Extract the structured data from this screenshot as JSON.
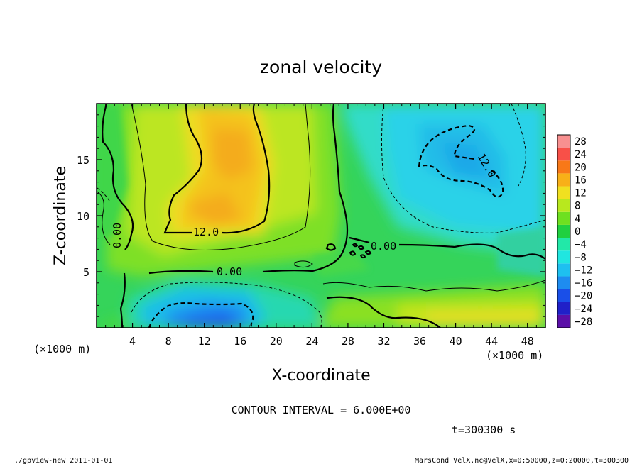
{
  "chart_data": {
    "type": "heatmap",
    "title": "zonal velocity",
    "xlabel": "X-coordinate",
    "ylabel": "Z-coordinate",
    "x_unit": "(×1000 m)",
    "y_unit": "(×1000 m)",
    "xlim": [
      0,
      50
    ],
    "ylim": [
      0,
      20
    ],
    "x_ticks": [
      4,
      8,
      12,
      16,
      20,
      24,
      28,
      32,
      36,
      40,
      44,
      48
    ],
    "y_ticks": [
      5,
      10,
      15
    ],
    "colorbar": {
      "levels": [
        -28,
        -24,
        -20,
        -16,
        -12,
        -8,
        -4,
        0,
        4,
        8,
        12,
        16,
        20,
        24,
        28
      ],
      "colors": [
        "#5b0fa8",
        "#2020c8",
        "#1a4fe8",
        "#1e8cf0",
        "#1ec0f0",
        "#20e6e0",
        "#22e8a8",
        "#20d040",
        "#6ee020",
        "#b8e81e",
        "#f0e020",
        "#f8b018",
        "#f87818",
        "#f85048",
        "#f89090"
      ]
    },
    "contour_labels": [
      "12.0",
      "0.00",
      "0.00",
      "0.00",
      "12.0"
    ],
    "contour_interval_text": "CONTOUR INTERVAL = 6.000E+00",
    "time_text": "t=300300 s",
    "grid": false,
    "legend": "right"
  },
  "footer": {
    "left": "./gpview-new 2011-01-01",
    "right": "MarsCond_VelX.nc@VelX,x=0:50000,z=0:20000,t=300300"
  }
}
